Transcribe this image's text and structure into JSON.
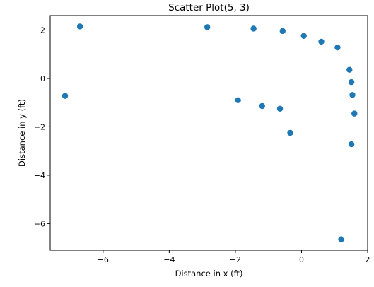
{
  "chart_data": {
    "type": "scatter",
    "title": "Scatter Plot(5, 3)",
    "xlabel": "Distance in x (ft)",
    "ylabel": "Distance in y (ft)",
    "xlim": [
      -7.6,
      2.0
    ],
    "ylim": [
      -7.1,
      2.6
    ],
    "x_ticks": [
      -6,
      -4,
      -2,
      0,
      2
    ],
    "y_ticks": [
      -6,
      -4,
      -2,
      0,
      2
    ],
    "grid": false,
    "legend": "none",
    "marker_color": "#1f77b4",
    "points": [
      {
        "x": -7.15,
        "y": -0.72
      },
      {
        "x": -6.7,
        "y": 2.15
      },
      {
        "x": -2.85,
        "y": 2.12
      },
      {
        "x": -1.45,
        "y": 2.06
      },
      {
        "x": -0.57,
        "y": 1.96
      },
      {
        "x": 0.07,
        "y": 1.76
      },
      {
        "x": 0.6,
        "y": 1.52
      },
      {
        "x": 1.09,
        "y": 1.28
      },
      {
        "x": 1.45,
        "y": 0.36
      },
      {
        "x": 1.51,
        "y": -0.15
      },
      {
        "x": 1.54,
        "y": -0.68
      },
      {
        "x": 1.6,
        "y": -1.45
      },
      {
        "x": 1.51,
        "y": -2.72
      },
      {
        "x": -1.92,
        "y": -0.9
      },
      {
        "x": -1.19,
        "y": -1.14
      },
      {
        "x": -0.65,
        "y": -1.25
      },
      {
        "x": -0.34,
        "y": -2.25
      },
      {
        "x": 1.2,
        "y": -6.65
      }
    ]
  }
}
